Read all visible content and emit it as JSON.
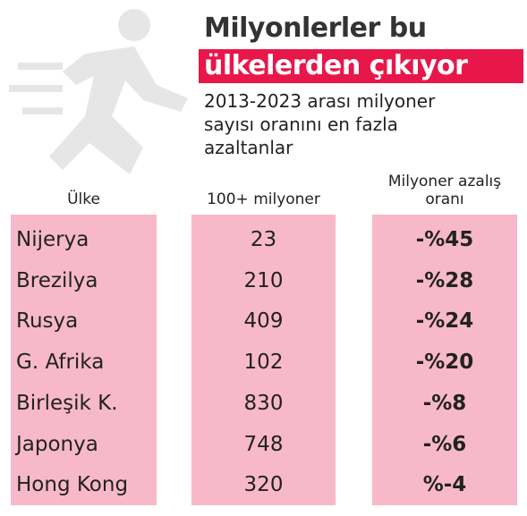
{
  "header": {
    "title_line1": "Milyonlerler bu",
    "title_line2": "ülkelerden çıkıyor",
    "subtitle": "2013-2023 arası milyoner sayısı oranını en fazla azaltanlar"
  },
  "table": {
    "columns": [
      "Ülke",
      "100+ milyoner",
      "Milyoner azalış oranı"
    ],
    "rows": [
      [
        "Nijerya",
        23,
        "-%45"
      ],
      [
        "Brezilya",
        210,
        "-%28"
      ],
      [
        "Rusya",
        409,
        "-%24"
      ],
      [
        "G. Afrika",
        102,
        "-%20"
      ],
      [
        "Birleşik K.",
        830,
        "-%8"
      ],
      [
        "Japonya",
        748,
        "-%6"
      ],
      [
        "Hong Kong",
        320,
        "%-4"
      ]
    ]
  }
}
